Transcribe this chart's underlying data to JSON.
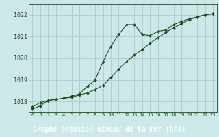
{
  "title": "Graphe pression niveau de la mer (hPa)",
  "bg_color": "#cce8e8",
  "plot_bg_color": "#cce8e8",
  "label_bg_color": "#2d6a2d",
  "label_text_color": "#ffffff",
  "grid_color": "#aacccc",
  "line_color": "#1a4d1a",
  "xlim": [
    -0.5,
    23.5
  ],
  "ylim": [
    1017.5,
    1022.5
  ],
  "yticks": [
    1018,
    1019,
    1020,
    1021,
    1022
  ],
  "xticks": [
    0,
    1,
    2,
    3,
    4,
    5,
    6,
    7,
    8,
    9,
    10,
    11,
    12,
    13,
    14,
    15,
    16,
    17,
    18,
    19,
    20,
    21,
    22,
    23
  ],
  "series1_x": [
    0,
    1,
    2,
    3,
    4,
    5,
    6,
    7,
    8,
    9,
    10,
    11,
    12,
    13,
    14,
    15,
    16,
    17,
    18,
    19,
    20,
    21,
    22,
    23
  ],
  "series1_y": [
    1017.65,
    1017.8,
    1018.05,
    1018.1,
    1018.15,
    1018.2,
    1018.3,
    1018.4,
    1018.55,
    1018.75,
    1019.1,
    1019.5,
    1019.85,
    1020.15,
    1020.4,
    1020.7,
    1020.95,
    1021.2,
    1021.4,
    1021.6,
    1021.78,
    1021.9,
    1022.0,
    1022.05
  ],
  "series2_x": [
    0,
    1,
    2,
    3,
    4,
    5,
    6,
    7,
    8,
    9,
    10,
    11,
    12,
    13,
    14,
    15,
    16,
    17,
    18,
    19,
    20,
    21,
    22,
    23
  ],
  "series2_y": [
    1017.75,
    1017.95,
    1018.05,
    1018.1,
    1018.15,
    1018.25,
    1018.35,
    1018.7,
    1019.0,
    1019.85,
    1020.55,
    1021.1,
    1021.55,
    1021.55,
    1021.1,
    1021.05,
    1021.25,
    1021.3,
    1021.55,
    1021.7,
    1021.82,
    1021.9,
    1022.0,
    1022.05
  ]
}
